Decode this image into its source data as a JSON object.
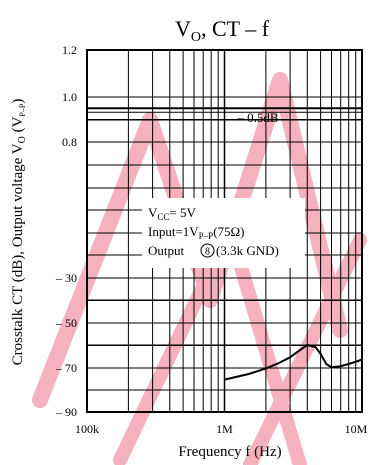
{
  "chart_data": {
    "type": "line",
    "title": {
      "main": "V",
      "sub": "O",
      "rest": ",  CT – f"
    },
    "xlabel": "Frequency  f  (Hz)",
    "ylabel": {
      "lead": "Crosstalk  CT  (dB),  Output voltage  V",
      "sub1": "O",
      "mid": "  (V",
      "sub2": "P–P",
      "end": ")"
    },
    "x_scale": "log",
    "xlim": [
      100000,
      10000000
    ],
    "x_ticks": [
      {
        "value": 100000,
        "label": "100k"
      },
      {
        "value": 1000000,
        "label": "1M"
      },
      {
        "value": 10000000,
        "label": "10M"
      }
    ],
    "y_ticks": [
      {
        "label": "1.2"
      },
      {
        "label": "1.0"
      },
      {
        "label": "0.8"
      },
      {
        "label": "– 30"
      },
      {
        "label": "– 50"
      },
      {
        "label": "– 70"
      },
      {
        "label": "– 90"
      }
    ],
    "grid": true,
    "series": [
      {
        "kind": "output_voltage",
        "unit": "V(P-P)",
        "x": [
          100000,
          10000000
        ],
        "y": [
          0.95,
          0.95
        ]
      },
      {
        "kind": "crosstalk",
        "unit": "dB",
        "x": [
          1000000,
          1500000,
          2000000,
          2500000,
          3000000,
          3500000,
          4000000,
          4600000,
          5000000,
          5500000,
          6000000,
          7000000,
          8000000,
          9000000,
          10000000
        ],
        "y": [
          -75.5,
          -73,
          -70.5,
          -68,
          -65.5,
          -62.5,
          -60,
          -61,
          -64,
          -68.5,
          -70,
          -69.5,
          -68.5,
          -67.5,
          -66.5
        ]
      }
    ],
    "annotations": {
      "db_label": "– 0.5dB",
      "conditions": {
        "vcc_main": "V",
        "vcc_sub": "CC",
        "vcc_value": "= 5V",
        "input_main": "Input=1V",
        "input_sub": "P–P",
        "input_value": "(75Ω)",
        "output_main": "Output",
        "output_pin": "8",
        "output_value": "(3.3k  GND)"
      }
    },
    "colors": {
      "curve": "#000000",
      "grid": "#000000",
      "watermark": "#f4a6b2"
    }
  }
}
